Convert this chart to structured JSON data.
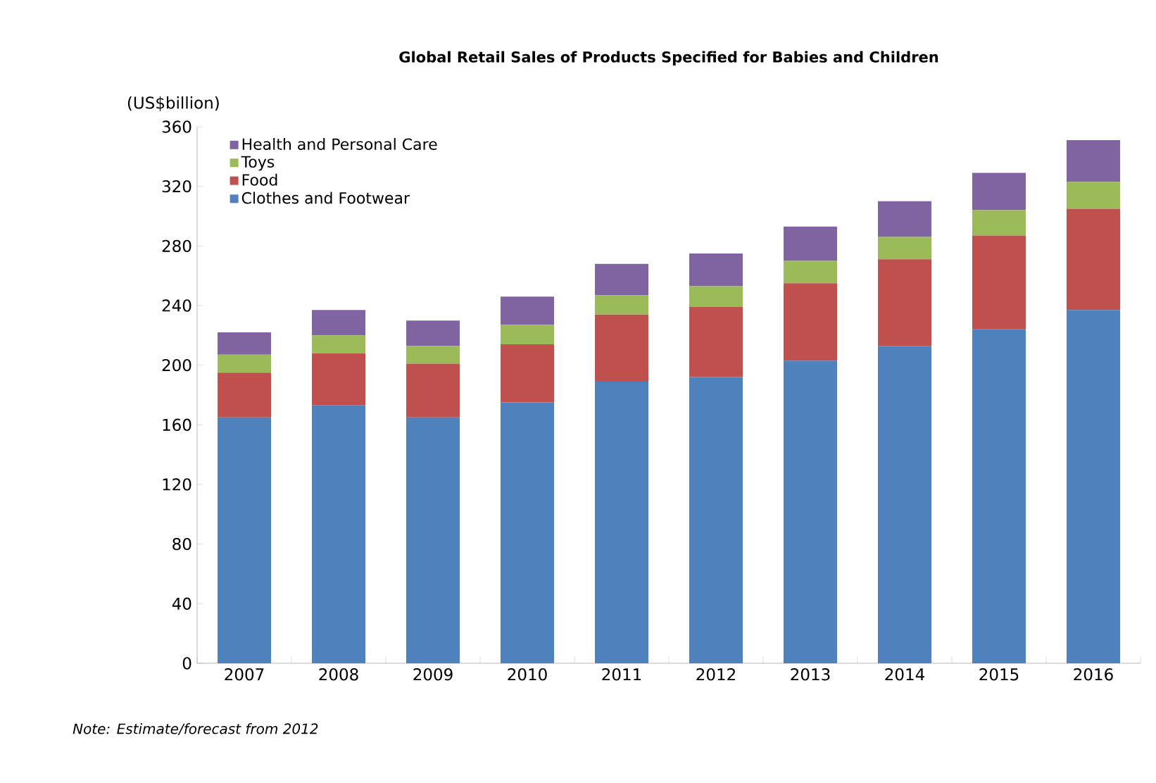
{
  "chart_data": {
    "type": "bar",
    "stacked": true,
    "title": "Global Retail Sales of Products Specified for Babies and Children",
    "ylabel": "(US$billion)",
    "categories": [
      "2007",
      "2008",
      "2009",
      "2010",
      "2011",
      "2012",
      "2013",
      "2014",
      "2015",
      "2016"
    ],
    "series": [
      {
        "name": "Clothes and Footwear",
        "color": "#4f81bd",
        "values": [
          165,
          173,
          165,
          175,
          189,
          192,
          203,
          213,
          224,
          237
        ]
      },
      {
        "name": "Food",
        "color": "#c0504d",
        "values": [
          30,
          35,
          36,
          39,
          45,
          47,
          52,
          58,
          63,
          68
        ]
      },
      {
        "name": "Toys",
        "color": "#9bbb59",
        "values": [
          12,
          12,
          12,
          13,
          13,
          14,
          15,
          15,
          17,
          18
        ]
      },
      {
        "name": "Health and Personal Care",
        "color": "#8064a2",
        "values": [
          15,
          17,
          17,
          19,
          21,
          22,
          23,
          24,
          25,
          28
        ]
      }
    ],
    "ylim": [
      0,
      360
    ],
    "yticks": [
      0,
      40,
      80,
      120,
      160,
      200,
      240,
      280,
      320,
      360
    ],
    "grid": false,
    "legend": "top left",
    "annotations": [
      "Note: Estimate/forecast from 2012"
    ]
  }
}
